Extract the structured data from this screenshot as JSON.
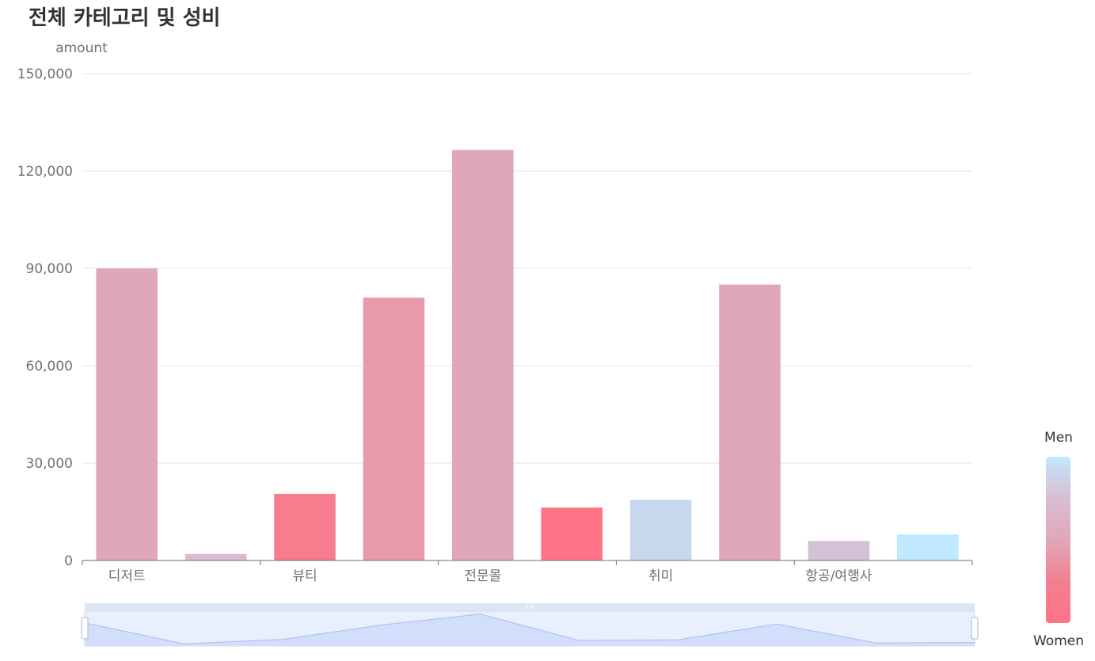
{
  "chart_data": {
    "type": "bar",
    "title": "전체 카테고리 및 성비",
    "ylabel": "amount",
    "xlabel": "",
    "ylim": [
      0,
      150000
    ],
    "yticks": [
      0,
      30000,
      60000,
      90000,
      120000,
      150000
    ],
    "ytick_labels": [
      "0",
      "30,000",
      "60,000",
      "90,000",
      "120,000",
      "150,000"
    ],
    "categories": [
      "디저트",
      "",
      "뷰티",
      "",
      "전문몰",
      "",
      "취미",
      "",
      "항공/여행사",
      ""
    ],
    "values": [
      90000,
      2000,
      20500,
      81000,
      126500,
      16300,
      18700,
      85000,
      6000,
      8000
    ],
    "colors": [
      "#e0a7b9",
      "#d8bdd2",
      "#f77d8e",
      "#e89aac",
      "#e0a7b9",
      "#ff7386",
      "#c7d8ee",
      "#e0a7b9",
      "#d4c1d6",
      "#c0e8ff"
    ],
    "grid": true,
    "visual_map": {
      "top_label": "Men",
      "bottom_label": "Women",
      "colors": [
        "#c0e8ff",
        "#d8bdd2",
        "#e0a7b9",
        "#f27f91",
        "#ff7386"
      ]
    },
    "data_zoom": {
      "start": 0,
      "end": 100
    }
  }
}
